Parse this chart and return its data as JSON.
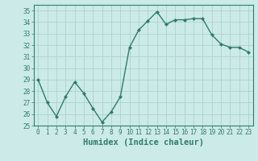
{
  "x": [
    0,
    1,
    2,
    3,
    4,
    5,
    6,
    7,
    8,
    9,
    10,
    11,
    12,
    13,
    14,
    15,
    16,
    17,
    18,
    19,
    20,
    21,
    22,
    23
  ],
  "y": [
    29,
    27,
    25.8,
    27.5,
    28.8,
    27.8,
    26.5,
    25.3,
    26.2,
    27.5,
    31.8,
    33.3,
    34.1,
    34.9,
    33.8,
    34.2,
    34.2,
    34.3,
    34.3,
    32.9,
    32.1,
    31.8,
    31.8,
    31.4
  ],
  "line_color": "#2e7d6e",
  "marker": "D",
  "marker_size": 2.0,
  "line_width": 1.0,
  "bg_color": "#cceae7",
  "grid_color": "#aad4d0",
  "xlabel": "Humidex (Indice chaleur)",
  "ylim": [
    25,
    35.5
  ],
  "xlim": [
    -0.5,
    23.5
  ],
  "yticks": [
    25,
    26,
    27,
    28,
    29,
    30,
    31,
    32,
    33,
    34,
    35
  ],
  "xticks": [
    0,
    1,
    2,
    3,
    4,
    5,
    6,
    7,
    8,
    9,
    10,
    11,
    12,
    13,
    14,
    15,
    16,
    17,
    18,
    19,
    20,
    21,
    22,
    23
  ],
  "tick_fontsize": 5.5,
  "xlabel_fontsize": 7.5,
  "tick_color": "#2e7d6e",
  "spine_color": "#2e7d6e"
}
